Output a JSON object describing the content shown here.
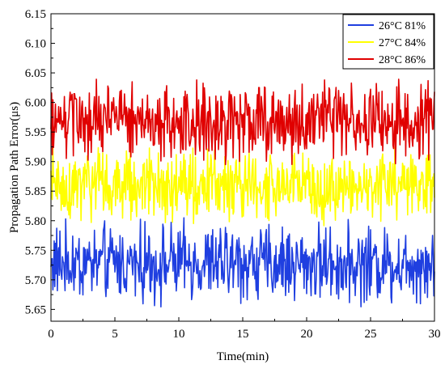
{
  "chart_data": {
    "type": "line",
    "title": "",
    "xlabel": "Time(min)",
    "ylabel": "Propagation Path Error(μs)",
    "xlim": [
      0,
      30
    ],
    "ylim": [
      5.63,
      6.15
    ],
    "x_ticks": [
      "0",
      "5",
      "10",
      "15",
      "20",
      "25",
      "30"
    ],
    "x_tick_values": [
      0,
      5,
      10,
      15,
      20,
      25,
      30
    ],
    "y_ticks": [
      "5.65",
      "5.70",
      "5.75",
      "5.80",
      "5.85",
      "5.90",
      "5.95",
      "6.00",
      "6.05",
      "6.10",
      "6.15"
    ],
    "y_tick_values": [
      5.65,
      5.7,
      5.75,
      5.8,
      5.85,
      5.9,
      5.95,
      6.0,
      6.05,
      6.1,
      6.15
    ],
    "grid": false,
    "legend_position": "top-right",
    "x_step": 0.05,
    "series": [
      {
        "name": "26°C 81%",
        "color": "#1f3fe0",
        "mean": 5.728,
        "amplitude": 0.077,
        "range": [
          5.65,
          5.81
        ]
      },
      {
        "name": "27°C 84%",
        "color": "#ffff00",
        "mean": 5.858,
        "amplitude": 0.071,
        "range": [
          5.78,
          5.94
        ]
      },
      {
        "name": "28°C 86%",
        "color": "#e00000",
        "mean": 5.968,
        "amplitude": 0.078,
        "range": [
          5.89,
          6.05
        ]
      }
    ]
  }
}
